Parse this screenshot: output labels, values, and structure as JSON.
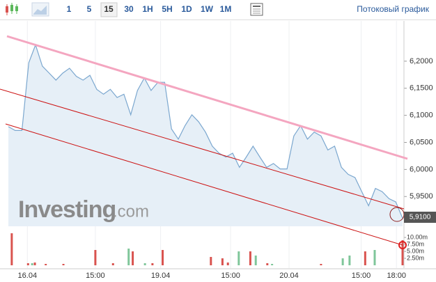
{
  "toolbar": {
    "intervals": [
      "1",
      "5",
      "15",
      "30",
      "1H",
      "5H",
      "1D",
      "1W",
      "1M"
    ],
    "selected": "15",
    "stream_link": "Потоковый график"
  },
  "watermark": {
    "brand": "Investing",
    "suffix": ".com"
  },
  "current_price_label": "5,9100",
  "chart_data": [
    {
      "type": "line",
      "color": "#7ba7cf",
      "fill": "#e6eff7",
      "values": [
        6.079,
        6.072,
        6.072,
        6.197,
        6.23,
        6.191,
        6.178,
        6.165,
        6.178,
        6.187,
        6.172,
        6.165,
        6.174,
        6.148,
        6.139,
        6.148,
        6.133,
        6.139,
        6.101,
        6.146,
        6.169,
        6.146,
        6.161,
        6.161,
        6.075,
        6.056,
        6.081,
        6.101,
        6.088,
        6.069,
        6.043,
        6.03,
        6.023,
        6.03,
        6.004,
        6.023,
        6.043,
        6.023,
        6.004,
        6.011,
        6.001,
        6.001,
        6.062,
        6.081,
        6.056,
        6.069,
        6.062,
        6.036,
        6.043,
        6.004,
        5.991,
        5.985,
        5.959,
        5.933,
        5.965,
        5.959,
        5.946,
        5.94,
        5.91
      ],
      "xlim": [
        0,
        58
      ],
      "xticks": [
        {
          "value": 2.8,
          "label": "16.04"
        },
        {
          "value": 12.8,
          "label": "15:00"
        },
        {
          "value": 22.4,
          "label": "19.04"
        },
        {
          "value": 32.7,
          "label": "15:00"
        },
        {
          "value": 41.3,
          "label": "20.04"
        },
        {
          "value": 51.9,
          "label": "15:00"
        },
        {
          "value": 57.1,
          "label": "18:00"
        }
      ],
      "ylim": [
        5.895,
        6.277
      ],
      "yticks": [
        {
          "value": 5.95,
          "label": "5,9500"
        },
        {
          "value": 6.0,
          "label": "6,0000"
        },
        {
          "value": 6.05,
          "label": "6,0500"
        },
        {
          "value": 6.1,
          "label": "6,1000"
        },
        {
          "value": 6.15,
          "label": "6,1500"
        },
        {
          "value": 6.2,
          "label": "6,2000"
        }
      ],
      "grid": true
    },
    {
      "type": "bar",
      "x": [
        0.5,
        2.9,
        3.5,
        3.9,
        5.5,
        8.1,
        12.8,
        15.4,
        17.7,
        18.3,
        20.1,
        21.2,
        22.7,
        29.8,
        31.5,
        32.3,
        33.9,
        35.6,
        36.4,
        38.1,
        38.8,
        46.0,
        49.2,
        50.2,
        52.5,
        53.9,
        58.0
      ],
      "values": [
        11.5,
        0.75,
        0.75,
        1,
        0.5,
        0.5,
        5.5,
        0.75,
        6,
        5,
        0.75,
        0.75,
        5.5,
        3,
        2.5,
        1,
        5,
        5,
        3.5,
        0.75,
        0.5,
        0.5,
        2.5,
        3.5,
        5,
        5.5,
        9
      ],
      "colors": [
        "#d9534f",
        "#d9534f",
        "#7fc69a",
        "#d9534f",
        "#d9534f",
        "#d9534f",
        "#d9534f",
        "#d9534f",
        "#7fc69a",
        "#d9534f",
        "#7fc69a",
        "#d9534f",
        "#d9534f",
        "#d9534f",
        "#d9534f",
        "#d9534f",
        "#7fc69a",
        "#d9534f",
        "#7fc69a",
        "#d9534f",
        "#7fc69a",
        "#d9534f",
        "#7fc69a",
        "#7fc69a",
        "#d9534f",
        "#7fc69a",
        "#d9534f"
      ],
      "ylim": [
        0,
        12.5
      ],
      "yticks": [
        {
          "value": 2.5,
          "label": "2.50m"
        },
        {
          "value": 5,
          "label": "5.00m"
        },
        {
          "value": 7.5,
          "label": "7.50m"
        },
        {
          "value": 10,
          "label": "10.00m"
        }
      ]
    }
  ]
}
